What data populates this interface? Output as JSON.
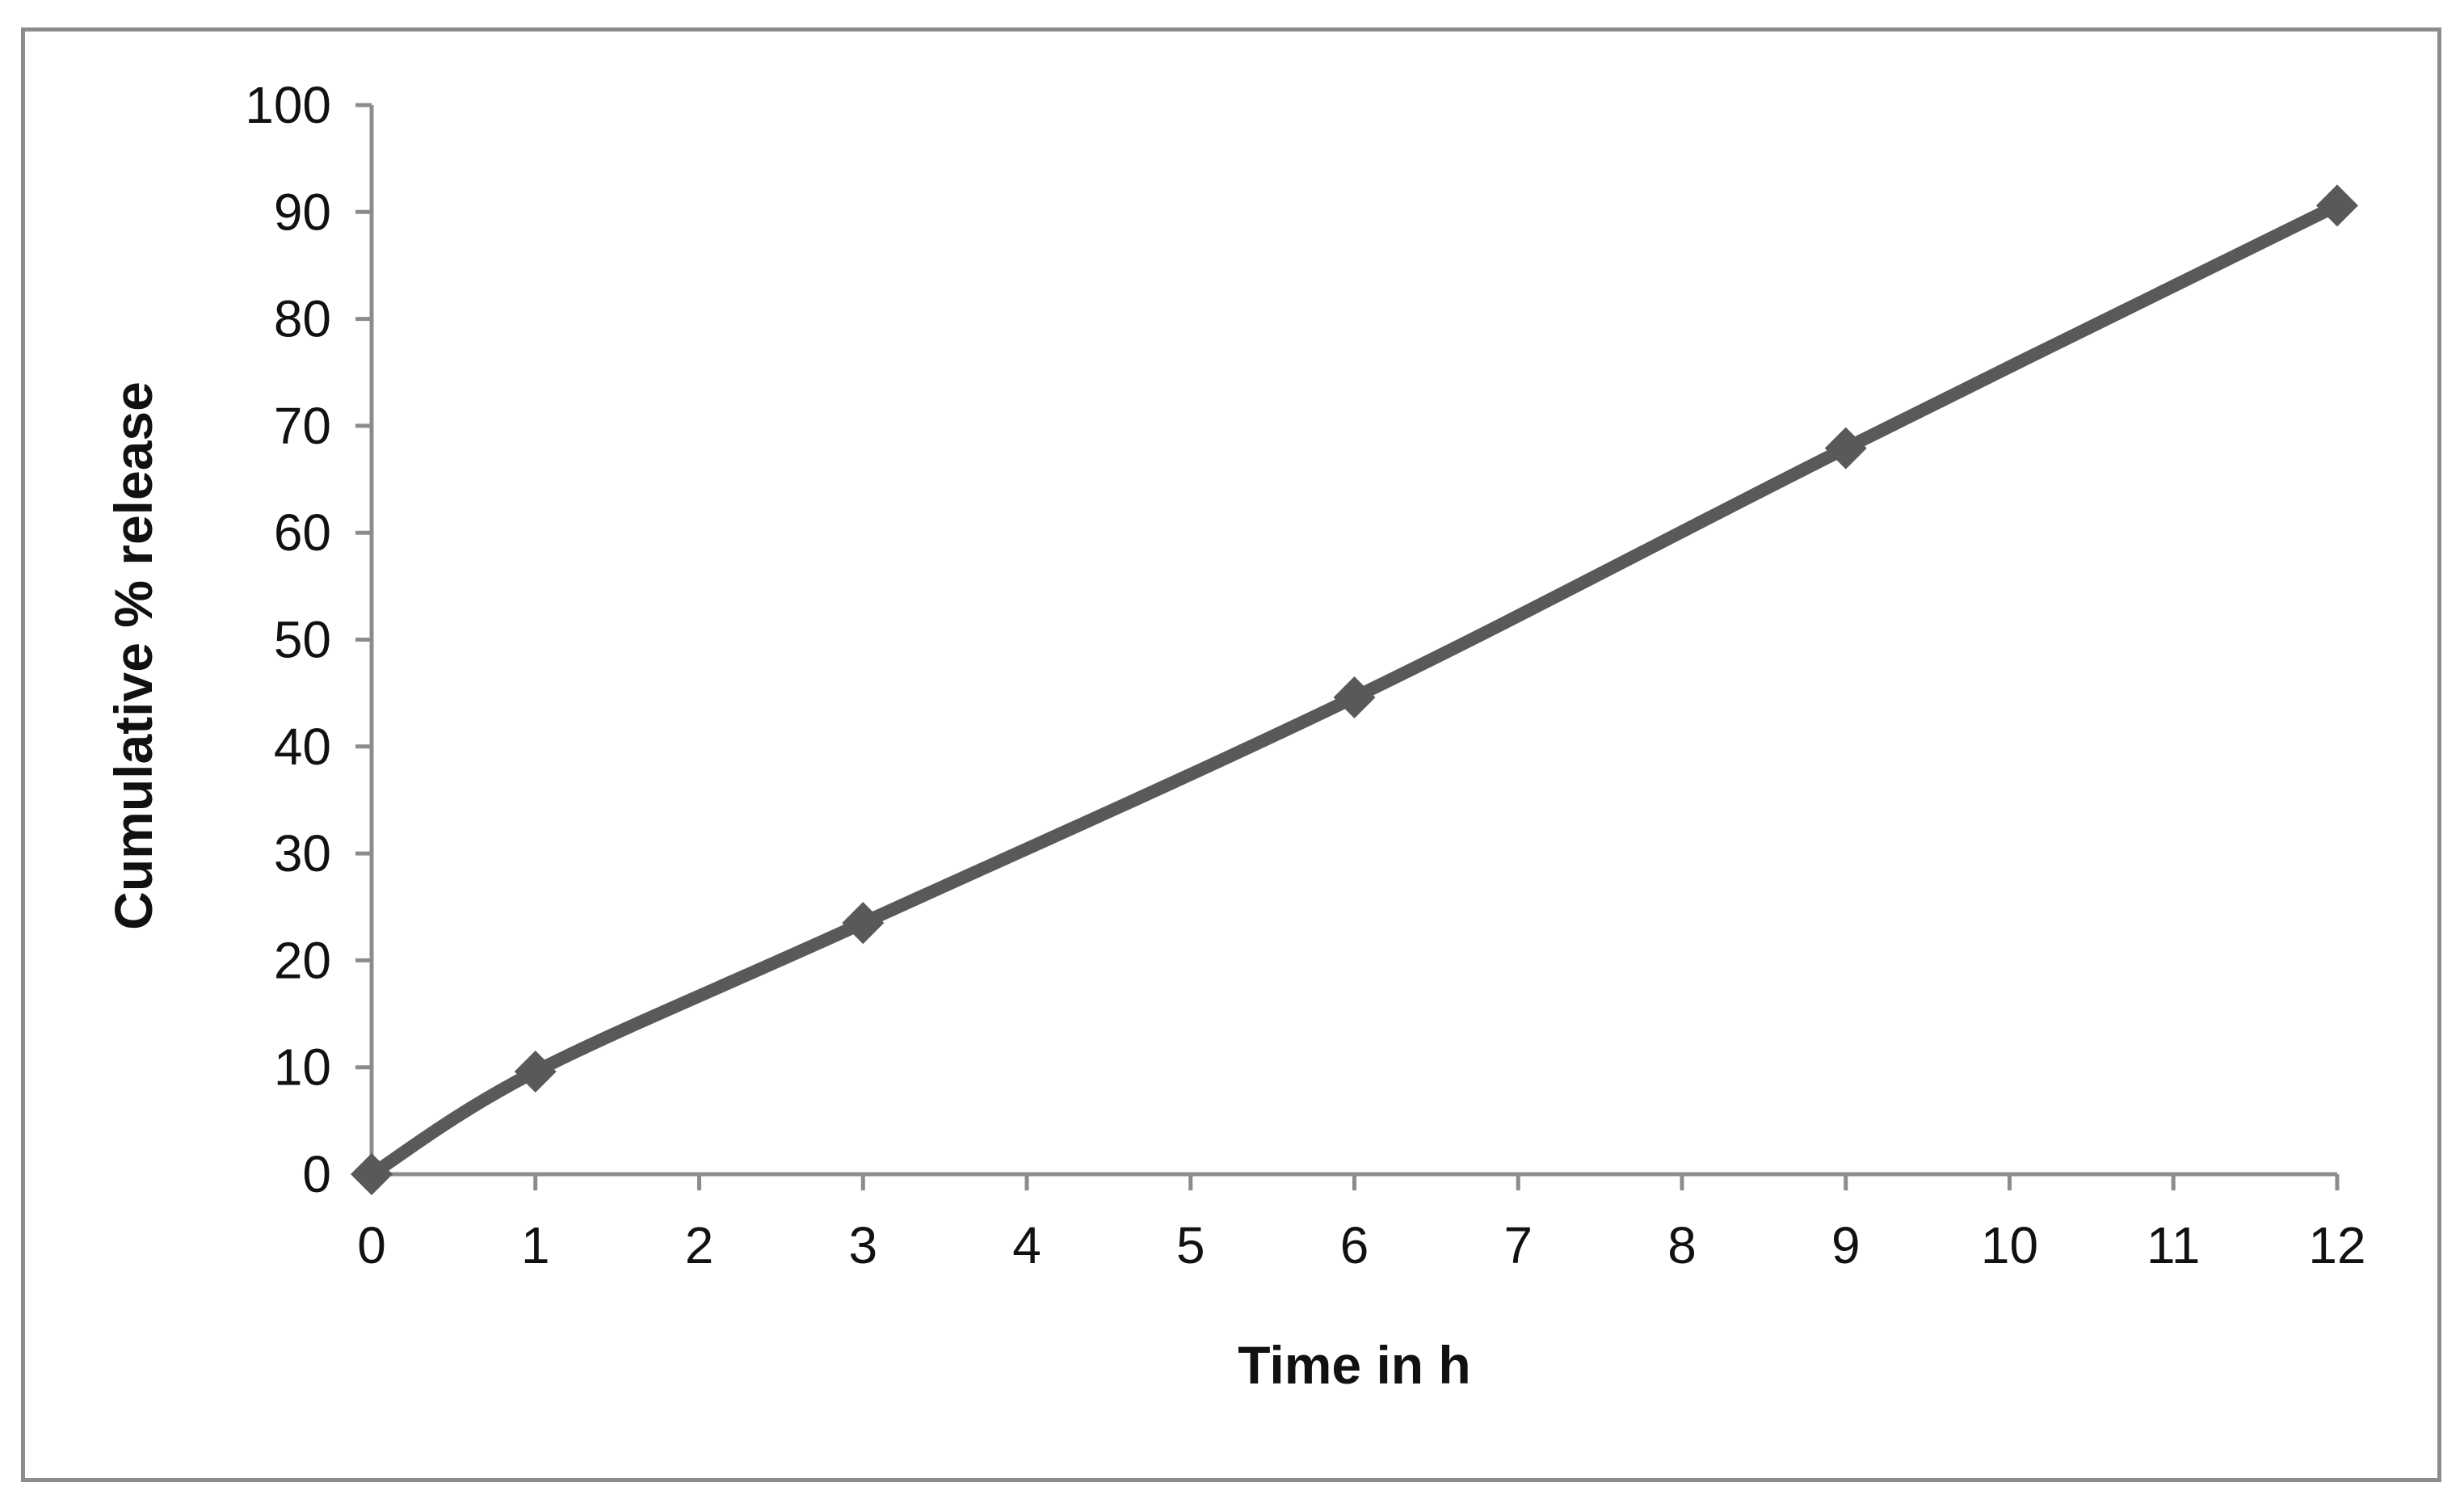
{
  "chart_data": {
    "type": "line",
    "title": "",
    "xlabel": "Time in h",
    "ylabel": "Cumulative % release",
    "x_ticks": [
      0,
      1,
      2,
      3,
      4,
      5,
      6,
      7,
      8,
      9,
      10,
      11,
      12
    ],
    "y_ticks": [
      0,
      10,
      20,
      30,
      40,
      50,
      60,
      70,
      80,
      90,
      100
    ],
    "xlim": [
      0,
      12
    ],
    "ylim": [
      0,
      100
    ],
    "grid": false,
    "legend": "none",
    "series": [
      {
        "x": [
          0,
          1,
          3,
          6,
          9,
          12
        ],
        "y": [
          0,
          9.6,
          23.5,
          44.6,
          67.9,
          90.6
        ],
        "color": "#595959",
        "marker": "diamond",
        "smooth": true
      }
    ]
  }
}
